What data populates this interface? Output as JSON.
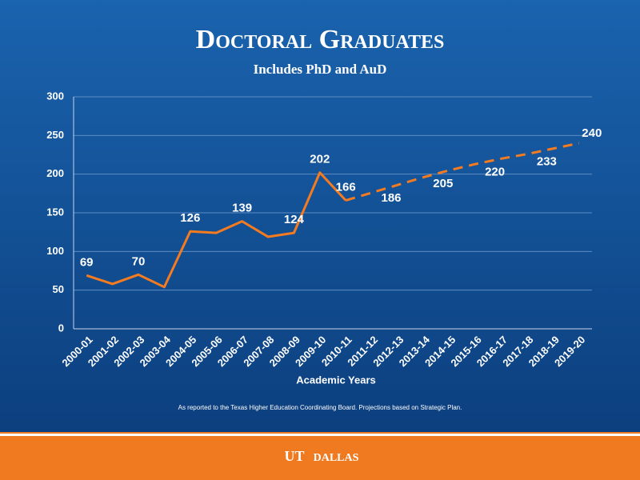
{
  "chart_data": {
    "type": "line",
    "title": "Doctoral Graduates",
    "subtitle": "Includes PhD and AuD",
    "x_label": "Academic Years",
    "note": "As reported to the Texas Higher Education Coordinating Board.  Projections based on Strategic Plan.",
    "categories": [
      "2000-01",
      "2001-02",
      "2002-03",
      "2003-04",
      "2004-05",
      "2005-06",
      "2006-07",
      "2007-08",
      "2008-09",
      "2009-10",
      "2010-11",
      "2011-12",
      "2012-13",
      "2013-14",
      "2014-15",
      "2015-16",
      "2016-17",
      "2017-18",
      "2018-19",
      "2019-20"
    ],
    "series": [
      {
        "color": "#f47b20",
        "dashed": false,
        "values": [
          69,
          58,
          70,
          54,
          126,
          124,
          139,
          119,
          124,
          202,
          166,
          null,
          null,
          null,
          null,
          null,
          null,
          null,
          null,
          null
        ],
        "value_labels": [
          "69",
          null,
          "70",
          null,
          "126",
          null,
          "139",
          null,
          "124",
          "202",
          "166",
          null,
          null,
          null,
          null,
          null,
          null,
          null,
          null,
          null
        ]
      },
      {
        "color": "#f47b20",
        "dashed": true,
        "values": [
          null,
          null,
          null,
          null,
          null,
          null,
          null,
          null,
          null,
          null,
          166,
          176,
          186,
          196,
          205,
          213,
          220,
          226,
          233,
          240
        ],
        "value_labels": [
          null,
          null,
          null,
          null,
          null,
          null,
          null,
          null,
          null,
          null,
          null,
          null,
          "186",
          null,
          "205",
          null,
          "220",
          null,
          "233",
          "240"
        ]
      }
    ],
    "ylim": [
      0,
      300
    ],
    "yticks": [
      0,
      50,
      100,
      150,
      200,
      250,
      300
    ],
    "grid": true,
    "logo": {
      "left": "UT",
      "right": "DALLAS"
    }
  }
}
